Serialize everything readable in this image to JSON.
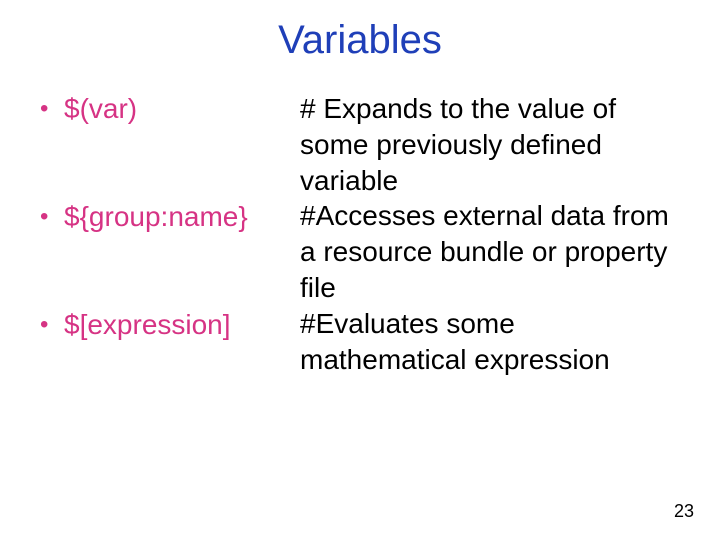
{
  "title": {
    "text": "Variables",
    "color": "#1f3fb8"
  },
  "bullet": {
    "color": "#d63384",
    "glyph": "•"
  },
  "items": [
    {
      "term": "$(var)",
      "term_color": "#d63384",
      "desc": "# Expands to the value of some previously defined variable",
      "desc_color": "#000000"
    },
    {
      "term": "${group:name}",
      "term_color": "#d63384",
      "desc": "#Accesses external data from a resource bundle or property file",
      "desc_color": "#000000"
    },
    {
      "term": "$[expression]",
      "term_color": "#d63384",
      "desc": "#Evaluates some mathematical expression",
      "desc_color": "#000000"
    }
  ],
  "page_number": {
    "text": "23",
    "color": "#000000"
  },
  "background_color": "#ffffff",
  "font_family": "Arial, Helvetica, sans-serif",
  "title_fontsize": 40,
  "body_fontsize": 28,
  "pagenum_fontsize": 18
}
